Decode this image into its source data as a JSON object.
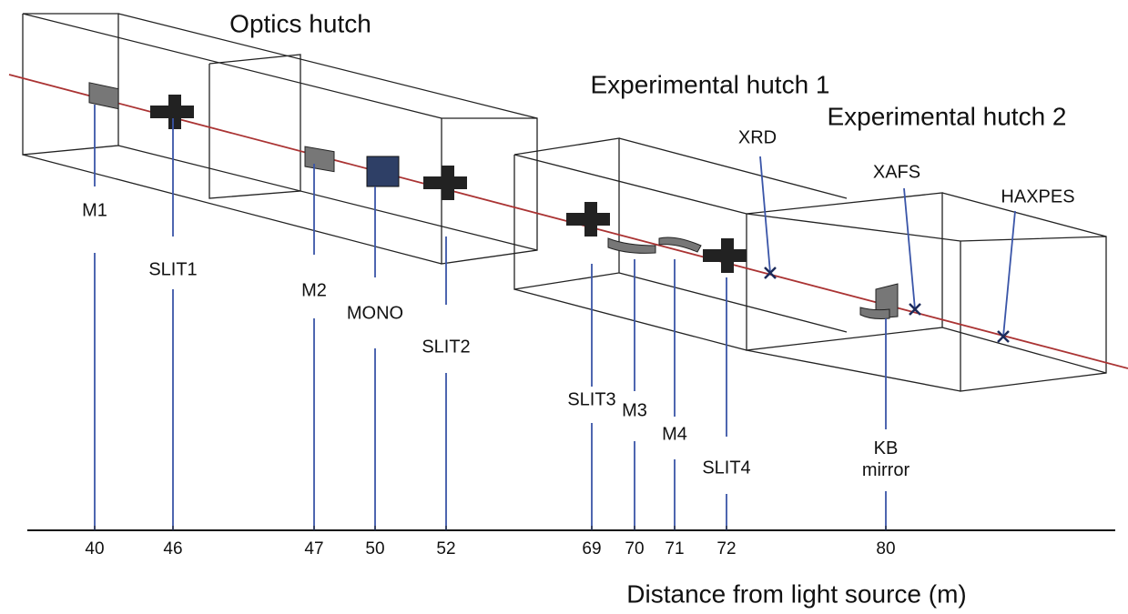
{
  "hutches": [
    {
      "label": "Optics hutch"
    },
    {
      "label": "Experimental hutch 1"
    },
    {
      "label": "Experimental hutch 2"
    }
  ],
  "components": [
    {
      "label": "M1",
      "distance": 40
    },
    {
      "label": "SLIT1",
      "distance": 46
    },
    {
      "label": "M2",
      "distance": 47
    },
    {
      "label": "MONO",
      "distance": 50
    },
    {
      "label": "SLIT2",
      "distance": 52
    },
    {
      "label": "SLIT3",
      "distance": 69
    },
    {
      "label": "M3",
      "distance": 70
    },
    {
      "label": "M4",
      "distance": 71
    },
    {
      "label": "SLIT4",
      "distance": 72
    },
    {
      "label": "KB mirror",
      "distance": 80
    }
  ],
  "endstations": [
    {
      "label": "XRD"
    },
    {
      "label": "XAFS"
    },
    {
      "label": "HAXPES"
    }
  ],
  "axis_label": "Distance from light source (m)"
}
